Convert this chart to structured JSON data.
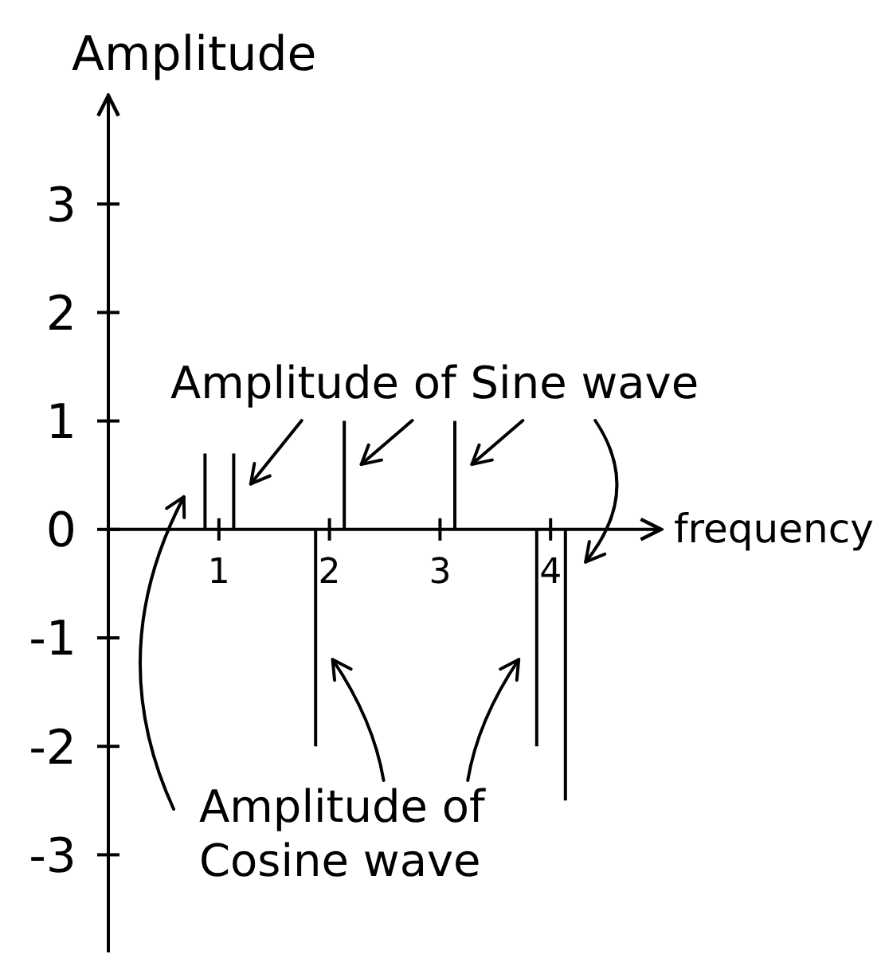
{
  "chart_data": {
    "type": "bar",
    "xlabel": "frequency",
    "ylabel": "Amplitude",
    "categories": [
      "1",
      "2",
      "3",
      "4"
    ],
    "ylim": [
      -3.9,
      4
    ],
    "yticks": [
      -3,
      -2,
      -1,
      0,
      1,
      2,
      3
    ],
    "series": [
      {
        "name": "Amplitude of Cosine wave",
        "color": "#000000",
        "values": [
          0.7,
          -2,
          null,
          -2
        ]
      },
      {
        "name": "Amplitude of Sine wave",
        "color": "#000000",
        "values": [
          0.7,
          1,
          1,
          -2.5
        ]
      }
    ]
  }
}
